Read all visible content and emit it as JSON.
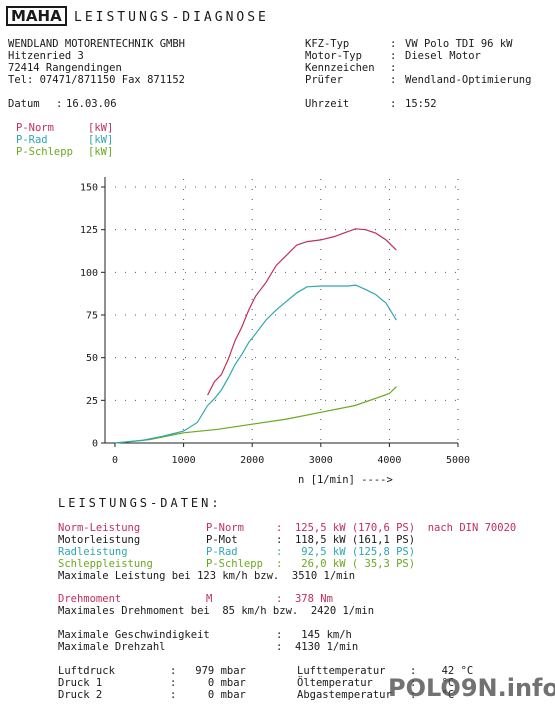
{
  "header": {
    "logo": "MAHA",
    "title": "LEISTUNGS-DIAGNOSE"
  },
  "company": {
    "name": "WENDLAND MOTORENTECHNIK GMBH",
    "street": "Hitzenried 3",
    "city": "72414 Rangendingen",
    "phone": "Tel: 07471/871150 Fax 871152"
  },
  "vehicle": {
    "kfz_label": "KFZ-Typ",
    "kfz_value": "VW Polo TDI 96 kW",
    "motor_label": "Motor-Typ",
    "motor_value": "Diesel Motor",
    "kenn_label": "Kennzeichen",
    "kenn_value": "",
    "pruefer_label": "Prüfer",
    "pruefer_value": "Wendland-Optimierung"
  },
  "datetime": {
    "datum_label": "Datum",
    "datum_value": "16.03.06",
    "uhrzeit_label": "Uhrzeit",
    "uhrzeit_value": "15:52"
  },
  "legend": [
    {
      "label": "P-Norm",
      "unit": "[kW]",
      "color": "#c0305a"
    },
    {
      "label": "P-Rad",
      "unit": "[kW]",
      "color": "#2fa6b0"
    },
    {
      "label": "P-Schlepp",
      "unit": "[kW]",
      "color": "#6aa81e"
    }
  ],
  "chart_data": {
    "type": "line",
    "xlabel": "n [1/min] ---->",
    "ylabel": "",
    "xlim": [
      0,
      5000
    ],
    "ylim": [
      0,
      150
    ],
    "xticks": [
      0,
      1000,
      2000,
      3000,
      4000,
      5000
    ],
    "yticks": [
      0,
      25,
      50,
      75,
      100,
      125,
      150
    ],
    "grid": true,
    "series": [
      {
        "name": "P-Norm",
        "color": "#c0305a",
        "x": [
          1350,
          1450,
          1550,
          1650,
          1750,
          1850,
          1950,
          2050,
          2200,
          2350,
          2500,
          2650,
          2800,
          3000,
          3200,
          3400,
          3510,
          3650,
          3800,
          3950,
          4100
        ],
        "y": [
          28,
          36,
          40,
          49,
          60,
          68,
          78,
          86,
          94,
          104,
          110,
          116,
          118,
          119,
          121,
          124,
          125.5,
          125,
          123,
          119,
          113
        ]
      },
      {
        "name": "P-Rad",
        "color": "#2fa6b0",
        "x": [
          1350,
          1450,
          1550,
          1650,
          1750,
          1850,
          1950,
          2050,
          2200,
          2350,
          2500,
          2650,
          2800,
          3000,
          3200,
          3400,
          3510,
          3650,
          3800,
          3950,
          4100
        ],
        "y": [
          22,
          26,
          31,
          38,
          46,
          52,
          59,
          64,
          72,
          78,
          83,
          88,
          91.5,
          92,
          92,
          92,
          92.5,
          90,
          87,
          82,
          72
        ]
      },
      {
        "name": "P-Schlepp",
        "color": "#6aa81e",
        "x": [
          0,
          500,
          1000,
          1500,
          2000,
          2500,
          3000,
          3500,
          4000,
          4100
        ],
        "y": [
          0,
          2,
          6,
          8,
          11,
          14,
          18,
          22,
          29,
          33
        ]
      }
    ],
    "extra_series": [
      {
        "name": "P-Rad (low)",
        "color": "#2fa6b0",
        "x": [
          0,
          400,
          700,
          800,
          1000,
          1200,
          1350
        ],
        "y": [
          0,
          1.5,
          4,
          5,
          7,
          12,
          22
        ]
      }
    ]
  },
  "data_section": {
    "title": "LEISTUNGS-DATEN:",
    "rows": [
      {
        "label": "Norm-Leistung",
        "sym": "P-Norm",
        "value": ":  125,5 kW (170,6 PS)  nach DIN 70020",
        "color": "#c0305a"
      },
      {
        "label": "Motorleistung",
        "sym": "P-Mot",
        "value": ":  118,5 kW (161,1 PS)",
        "color": "#1a1a1a"
      },
      {
        "label": "Radleistung",
        "sym": "P-Rad",
        "value": ":   92,5 kW (125,8 PS)",
        "color": "#2fa6b0"
      },
      {
        "label": "Schleppleistung",
        "sym": "P-Schlepp",
        "value": ":   26,0 kW ( 35,3 PS)",
        "color": "#6aa81e"
      }
    ],
    "max_power_line": "Maximale Leistung bei 123 km/h bzw.  3510 1/min",
    "torque_label": "Drehmoment",
    "torque_sym": "M",
    "torque_value": ":  378 Nm",
    "max_torque_line": "Maximales Drehmoment bei  85 km/h bzw.  2420 1/min",
    "vmax_label": "Maximale Geschwindigkeit",
    "vmax_value": ":   145 km/h",
    "nmax_label": "Maximale Drehzahl",
    "nmax_value": ":  4130 1/min",
    "luftdruck_label": "Luftdruck",
    "luftdruck_value": ":   979 mbar",
    "druck1_label": "Druck 1",
    "druck1_value": ":     0 mbar",
    "druck2_label": "Druck 2",
    "druck2_value": ":     0 mbar",
    "lufttemp_label": "Lufttemperatur",
    "lufttemp_value": ":    42 °C",
    "oeltemp_label": "Öltemperatur",
    "oeltemp_value": ":    °C",
    "abgas_label": "Abgastemperatur",
    "abgas_value": ":    °C"
  },
  "watermark": "POLO9N.info"
}
